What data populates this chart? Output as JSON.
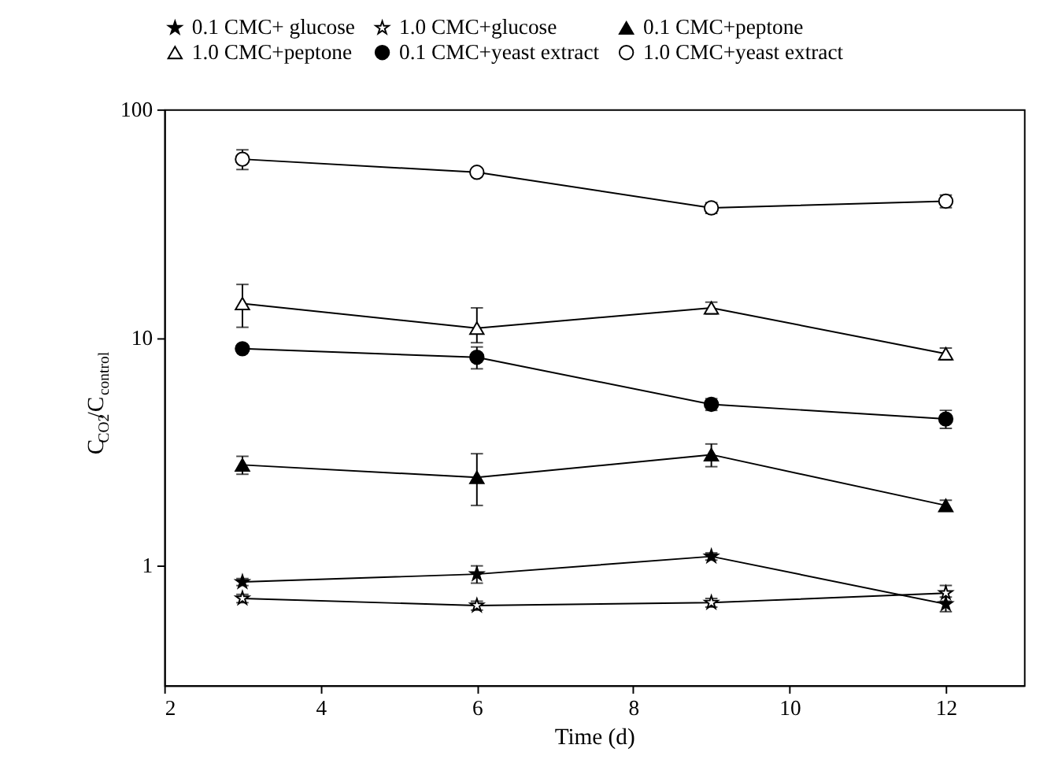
{
  "chart_data": {
    "type": "line",
    "xlabel": "Time (d)",
    "ylabel": "C$_{CO2}$/C$_{control}$",
    "x": [
      3,
      6,
      9,
      12
    ],
    "xlim": [
      2,
      13
    ],
    "xticks": [
      2,
      4,
      6,
      8,
      10,
      12
    ],
    "ylim": [
      0.3,
      100
    ],
    "yticks": [
      1,
      10,
      100
    ],
    "log": "y",
    "legend": "top",
    "grid": false,
    "line_style": "solid",
    "series": [
      {
        "name": "0.1 CMC+ glucose",
        "color": "#000000",
        "marker": "star",
        "values": [
          0.85,
          0.92,
          1.1,
          0.68
        ],
        "errors": [
          0.03,
          0.08,
          0.04,
          0.05
        ]
      },
      {
        "name": "1.0 CMC+glucose",
        "color": "#000000",
        "marker": "star",
        "values": [
          0.72,
          0.67,
          0.69,
          0.76
        ],
        "errors": [
          0.03,
          0.03,
          0.03,
          0.06
        ]
      },
      {
        "name": "0.1 CMC+peptone",
        "color": "#000000",
        "marker": "triangle",
        "values": [
          2.77,
          2.44,
          3.07,
          1.84
        ],
        "errors": [
          0.25,
          [
            1.84,
            3.1
          ],
          0.35,
          0.1
        ]
      },
      {
        "name": "1.0 CMC+peptone",
        "color": "#000000",
        "marker": "triangle",
        "values": [
          14.1,
          11.0,
          13.5,
          8.5
        ],
        "errors": [
          3,
          [
            9.5,
            13.5
          ],
          0.8,
          0.5
        ]
      },
      {
        "name": "0.1 CMC+yeast extract",
        "color": "#000000",
        "marker": "circle",
        "values": [
          8.94,
          8.2,
          5.1,
          4.4
        ],
        "errors": [
          0.3,
          0.9,
          0.3,
          0.4
        ]
      },
      {
        "name": "1.0 CMC+yeast extract",
        "color": "#000000",
        "marker": "circle",
        "values": [
          60.5,
          53,
          37,
          39.6
        ],
        "errors": [
          6,
          2,
          2,
          2.5
        ]
      }
    ]
  }
}
